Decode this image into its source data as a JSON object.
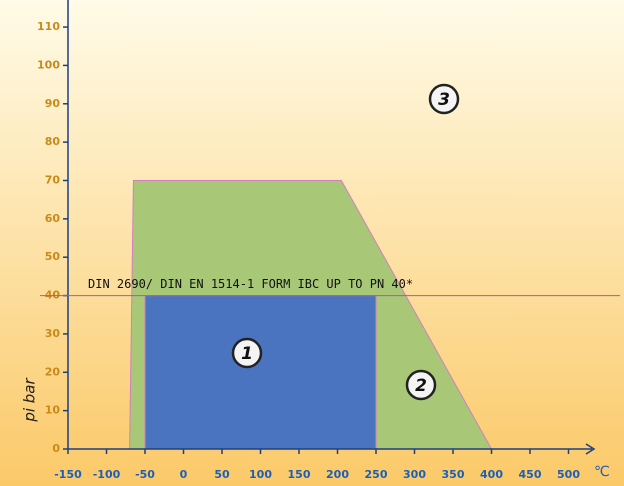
{
  "chart_data": {
    "type": "area",
    "y_label": "pi bar",
    "x_unit": "℃",
    "xlim": [
      -150,
      530
    ],
    "ylim": [
      0,
      117
    ],
    "xticks": [
      -150,
      -100,
      -50,
      0,
      50,
      100,
      150,
      200,
      250,
      300,
      350,
      400,
      450,
      500
    ],
    "yticks": [
      0,
      10,
      20,
      30,
      40,
      50,
      60,
      70,
      80,
      90,
      100,
      110
    ],
    "regions": [
      {
        "color": "#a8c878",
        "x": [
          -70,
          -65,
          205,
          400
        ],
        "values": [
          0,
          70,
          70,
          0
        ]
      },
      {
        "color": "#4a74c0",
        "x": [
          -50,
          -50,
          250,
          250
        ],
        "values": [
          0,
          40,
          40,
          0
        ]
      }
    ],
    "reference_line": {
      "value": 40,
      "label": "DIN 2690/ DIN EN 1514-1 FORM IBC UP TO PN 40*",
      "color": "#b050c0"
    },
    "annotations": [
      "1",
      "2",
      "3"
    ]
  }
}
